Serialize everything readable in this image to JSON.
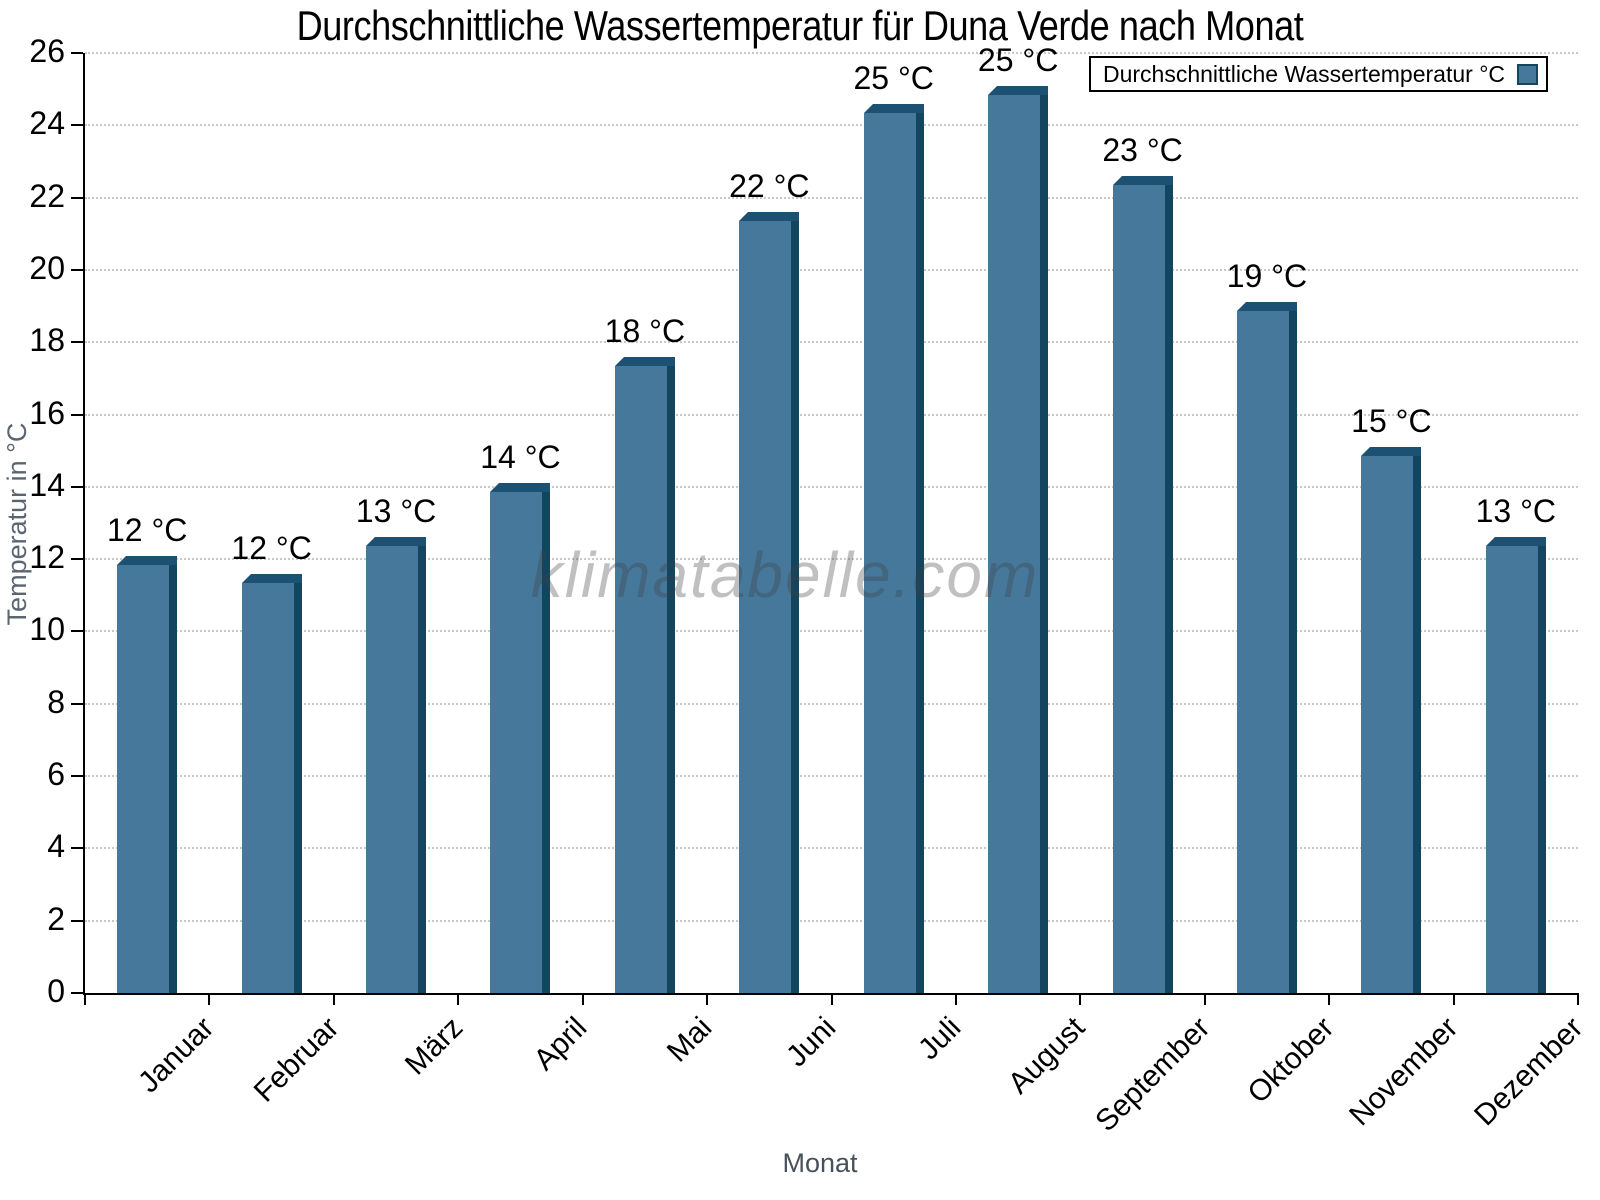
{
  "title": "Durchschnittliche Wassertemperatur für Duna Verde nach Monat",
  "watermark": "klimatabelle.com",
  "legend": {
    "label": "Durchschnittliche Wassertemperatur °C"
  },
  "chart_data": {
    "type": "bar",
    "title": "Durchschnittliche Wassertemperatur für Duna Verde nach Monat",
    "xlabel": "Monat",
    "ylabel": "Temperatur in °C",
    "categories": [
      "Januar",
      "Februar",
      "März",
      "April",
      "Mai",
      "Juni",
      "Juli",
      "August",
      "September",
      "Oktober",
      "November",
      "Dezember"
    ],
    "values": [
      12.1,
      11.6,
      12.6,
      14.1,
      17.6,
      21.6,
      24.6,
      25.1,
      22.6,
      19.1,
      15.1,
      12.6
    ],
    "bar_labels": [
      "12 °C",
      "12 °C",
      "13 °C",
      "14 °C",
      "18 °C",
      "22 °C",
      "25 °C",
      "25 °C",
      "23 °C",
      "19 °C",
      "15 °C",
      "13 °C"
    ],
    "series_name": "Durchschnittliche Wassertemperatur °C",
    "ylim": [
      0,
      26
    ],
    "yticks": [
      0,
      2,
      4,
      6,
      8,
      10,
      12,
      14,
      16,
      18,
      20,
      22,
      24,
      26
    ],
    "grid": "horizontal-dotted",
    "legend_position": "top-right",
    "colors": {
      "bar_face": "#45789B",
      "bar_edge": "#14455F",
      "bar_cap": "#1D5173",
      "grid": "#C9C9C9",
      "axis": "#000000",
      "axis_title": "#5B6570",
      "watermark": "#A8A8A8"
    }
  }
}
